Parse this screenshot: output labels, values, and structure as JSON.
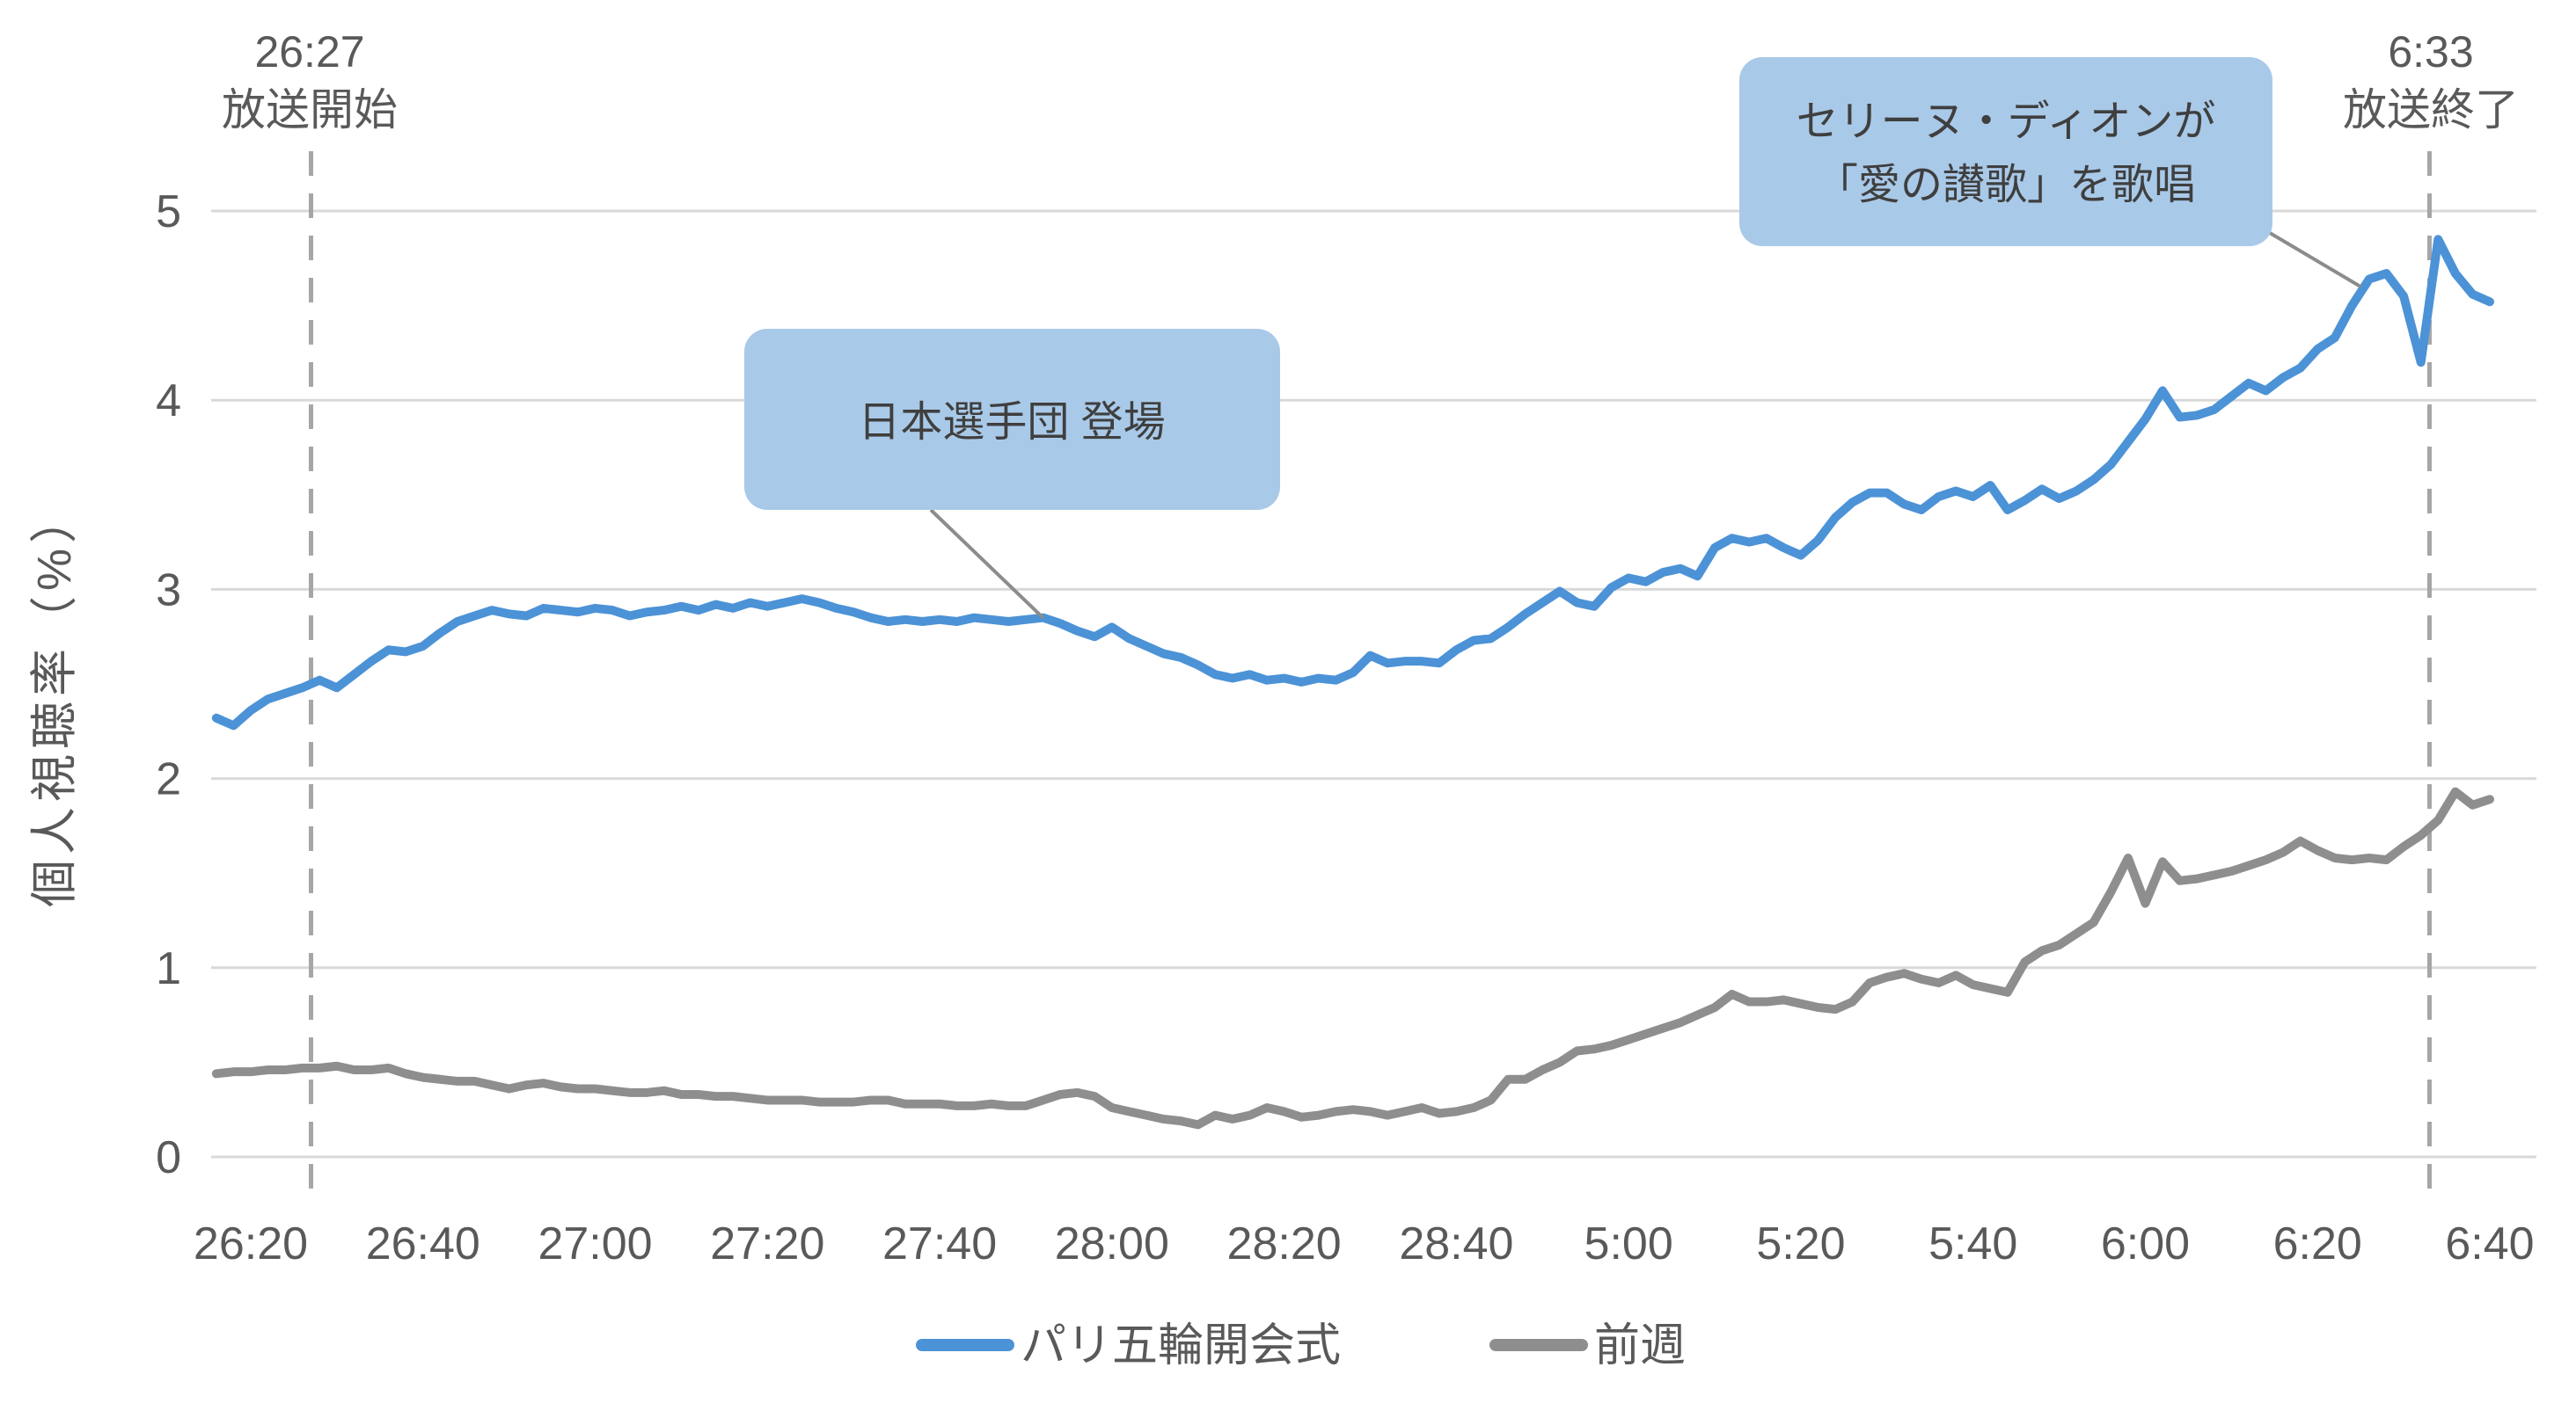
{
  "chart_data": {
    "type": "line",
    "ylabel": "個人視聴率（%）",
    "grid": "horizontal",
    "legend_position": "bottom-center",
    "ylim": [
      0,
      5
    ],
    "y_ticks": [
      0,
      1,
      2,
      3,
      4,
      5
    ],
    "x_unit": "minutes after 26:20 (late-night notation; 29:00 = 5:00)",
    "x_ticks": [
      {
        "t": 0,
        "label": "26:20"
      },
      {
        "t": 20,
        "label": "26:40"
      },
      {
        "t": 40,
        "label": "27:00"
      },
      {
        "t": 60,
        "label": "27:20"
      },
      {
        "t": 80,
        "label": "27:40"
      },
      {
        "t": 100,
        "label": "28:00"
      },
      {
        "t": 120,
        "label": "28:20"
      },
      {
        "t": 140,
        "label": "28:40"
      },
      {
        "t": 160,
        "label": "5:00"
      },
      {
        "t": 180,
        "label": "5:20"
      },
      {
        "t": 200,
        "label": "5:40"
      },
      {
        "t": 220,
        "label": "6:00"
      },
      {
        "t": 240,
        "label": "6:20"
      },
      {
        "t": 260,
        "label": "6:40"
      }
    ],
    "x_minutes": [
      -4,
      -2,
      0,
      2,
      4,
      6,
      8,
      10,
      12,
      14,
      16,
      18,
      20,
      22,
      24,
      26,
      28,
      30,
      32,
      34,
      36,
      38,
      40,
      42,
      44,
      46,
      48,
      50,
      52,
      54,
      56,
      58,
      60,
      62,
      64,
      66,
      68,
      70,
      72,
      74,
      76,
      78,
      80,
      82,
      84,
      86,
      88,
      90,
      92,
      94,
      96,
      98,
      100,
      102,
      104,
      106,
      108,
      110,
      112,
      114,
      116,
      118,
      120,
      122,
      124,
      126,
      128,
      130,
      132,
      134,
      136,
      138,
      140,
      142,
      144,
      146,
      148,
      150,
      152,
      154,
      156,
      158,
      160,
      162,
      164,
      166,
      168,
      170,
      172,
      174,
      176,
      178,
      180,
      182,
      184,
      186,
      188,
      190,
      192,
      194,
      196,
      198,
      200,
      202,
      204,
      206,
      208,
      210,
      212,
      214,
      216,
      218,
      220,
      222,
      224,
      226,
      228,
      230,
      232,
      234,
      236,
      238,
      240,
      242,
      244,
      246,
      248,
      250,
      252,
      254,
      256,
      258,
      260
    ],
    "series": [
      {
        "name": "パリ五輪開会式",
        "color": "#4C92D6",
        "values": [
          2.32,
          2.28,
          2.36,
          2.42,
          2.45,
          2.48,
          2.52,
          2.48,
          2.55,
          2.62,
          2.68,
          2.67,
          2.7,
          2.77,
          2.83,
          2.86,
          2.89,
          2.87,
          2.86,
          2.9,
          2.89,
          2.88,
          2.9,
          2.89,
          2.86,
          2.88,
          2.89,
          2.91,
          2.89,
          2.92,
          2.9,
          2.93,
          2.91,
          2.93,
          2.95,
          2.93,
          2.9,
          2.88,
          2.85,
          2.83,
          2.84,
          2.83,
          2.84,
          2.83,
          2.85,
          2.84,
          2.83,
          2.84,
          2.85,
          2.82,
          2.78,
          2.75,
          2.8,
          2.74,
          2.7,
          2.66,
          2.64,
          2.6,
          2.55,
          2.53,
          2.55,
          2.52,
          2.53,
          2.51,
          2.53,
          2.52,
          2.56,
          2.65,
          2.61,
          2.62,
          2.62,
          2.61,
          2.68,
          2.73,
          2.74,
          2.8,
          2.87,
          2.93,
          2.99,
          2.93,
          2.91,
          3.01,
          3.06,
          3.04,
          3.09,
          3.11,
          3.07,
          3.22,
          3.27,
          3.25,
          3.27,
          3.22,
          3.18,
          3.26,
          3.38,
          3.46,
          3.51,
          3.51,
          3.45,
          3.42,
          3.49,
          3.52,
          3.49,
          3.55,
          3.42,
          3.47,
          3.53,
          3.48,
          3.52,
          3.58,
          3.66,
          3.78,
          3.9,
          4.05,
          3.91,
          3.92,
          3.95,
          4.02,
          4.09,
          4.05,
          4.12,
          4.17,
          4.27,
          4.33,
          4.5,
          4.64,
          4.67,
          4.55,
          4.2,
          4.85,
          4.67,
          4.56,
          4.52
        ]
      },
      {
        "name": "前週",
        "color": "#8E8E8E",
        "values": [
          0.44,
          0.45,
          0.45,
          0.46,
          0.46,
          0.47,
          0.47,
          0.48,
          0.46,
          0.46,
          0.47,
          0.44,
          0.42,
          0.41,
          0.4,
          0.4,
          0.38,
          0.36,
          0.38,
          0.39,
          0.37,
          0.36,
          0.36,
          0.35,
          0.34,
          0.34,
          0.35,
          0.33,
          0.33,
          0.32,
          0.32,
          0.31,
          0.3,
          0.3,
          0.3,
          0.29,
          0.29,
          0.29,
          0.3,
          0.3,
          0.28,
          0.28,
          0.28,
          0.27,
          0.27,
          0.28,
          0.27,
          0.27,
          0.3,
          0.33,
          0.34,
          0.32,
          0.26,
          0.24,
          0.22,
          0.2,
          0.19,
          0.17,
          0.22,
          0.2,
          0.22,
          0.26,
          0.24,
          0.21,
          0.22,
          0.24,
          0.25,
          0.24,
          0.22,
          0.24,
          0.26,
          0.23,
          0.24,
          0.26,
          0.3,
          0.41,
          0.41,
          0.46,
          0.5,
          0.56,
          0.57,
          0.59,
          0.62,
          0.65,
          0.68,
          0.71,
          0.75,
          0.79,
          0.86,
          0.82,
          0.82,
          0.83,
          0.81,
          0.79,
          0.78,
          0.82,
          0.92,
          0.95,
          0.97,
          0.94,
          0.92,
          0.96,
          0.91,
          0.89,
          0.87,
          1.03,
          1.09,
          1.12,
          1.18,
          1.24,
          1.4,
          1.58,
          1.34,
          1.56,
          1.46,
          1.47,
          1.49,
          1.51,
          1.54,
          1.57,
          1.61,
          1.67,
          1.62,
          1.58,
          1.57,
          1.58,
          1.57,
          1.64,
          1.7,
          1.78,
          1.93,
          1.86,
          1.89
        ]
      }
    ]
  },
  "events": [
    {
      "time": "26:27",
      "label": "放送開始",
      "t": 7
    },
    {
      "time": "6:33",
      "label": "放送終了",
      "t": 253
    }
  ],
  "annotations": [
    {
      "lines": [
        "日本選手団 登場"
      ],
      "anchor_t": 92,
      "anchor_value": 2.85
    },
    {
      "lines": [
        "セリーヌ・ディオンが",
        "「愛の讃歌」を歌唱"
      ],
      "anchor_t": 245,
      "anchor_value": 4.6
    }
  ],
  "colors": {
    "background": "#FFFFFF",
    "gridline": "#D9D9D9",
    "axis_text": "#595959",
    "dashed_event_line": "#A6A6A6",
    "annotation_fill": "#A9C9E8",
    "annotation_text": "#3F3F3F",
    "leader_line": "#8C8C8C",
    "series_olympics": "#4C92D6",
    "series_prev_week": "#8E8E8E"
  }
}
